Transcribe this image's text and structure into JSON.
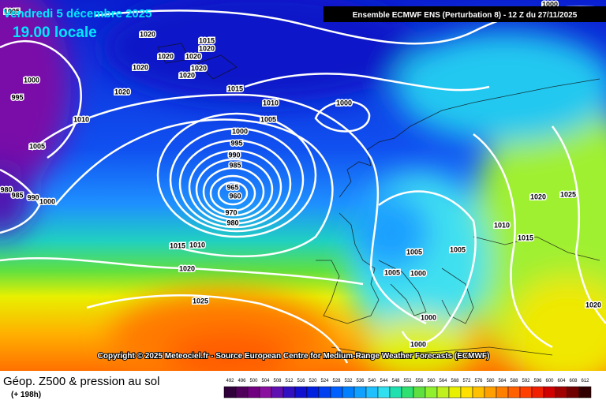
{
  "header": {
    "date": "Vendredi 5 décembre 2025",
    "time": "19.00 locale",
    "model": "Ensemble ECMWF ENS  (Perturbation 8)  -  12 Z du 27/11/2025"
  },
  "copyright": "Copyright © 2025 Meteociel.fr - Source European Centre for Medium-Range Weather Forecasts (ECMWF)",
  "footer": {
    "title": "Géop. Z500 & pression au sol",
    "lead": "(+ 198h)"
  },
  "scale": {
    "ticks": [
      492,
      496,
      500,
      504,
      508,
      512,
      516,
      520,
      524,
      528,
      532,
      536,
      540,
      544,
      548,
      552,
      556,
      560,
      564,
      568,
      572,
      576,
      580,
      584,
      588,
      592,
      596,
      600,
      604,
      608,
      612
    ],
    "colors": [
      "#30003a",
      "#50005a",
      "#700080",
      "#8a10a0",
      "#6010b0",
      "#3010c0",
      "#1010d0",
      "#0020e0",
      "#0040f0",
      "#0060ff",
      "#0080ff",
      "#10a0ff",
      "#20c0ff",
      "#30e0f0",
      "#20e0b0",
      "#30e070",
      "#60e040",
      "#90f030",
      "#c0f020",
      "#e8f000",
      "#ffe000",
      "#ffc000",
      "#ffa000",
      "#ff8000",
      "#ff6000",
      "#ff4000",
      "#f02000",
      "#d00000",
      "#a00000",
      "#700000",
      "#300000"
    ]
  },
  "isobar_labels": [
    1005,
    1020,
    1015,
    1020,
    1020,
    1020,
    1020,
    1020,
    1020,
    1000,
    995,
    1020,
    1015,
    1010,
    1000,
    1010,
    1005,
    1000,
    1005,
    995,
    990,
    985,
    965,
    960,
    970,
    980,
    980,
    985,
    990,
    1000,
    1015,
    1010,
    1020,
    1025,
    1020,
    1025,
    1010,
    1015,
    1005,
    1005,
    1005,
    1000,
    1020,
    1000,
    1000,
    1000
  ]
}
